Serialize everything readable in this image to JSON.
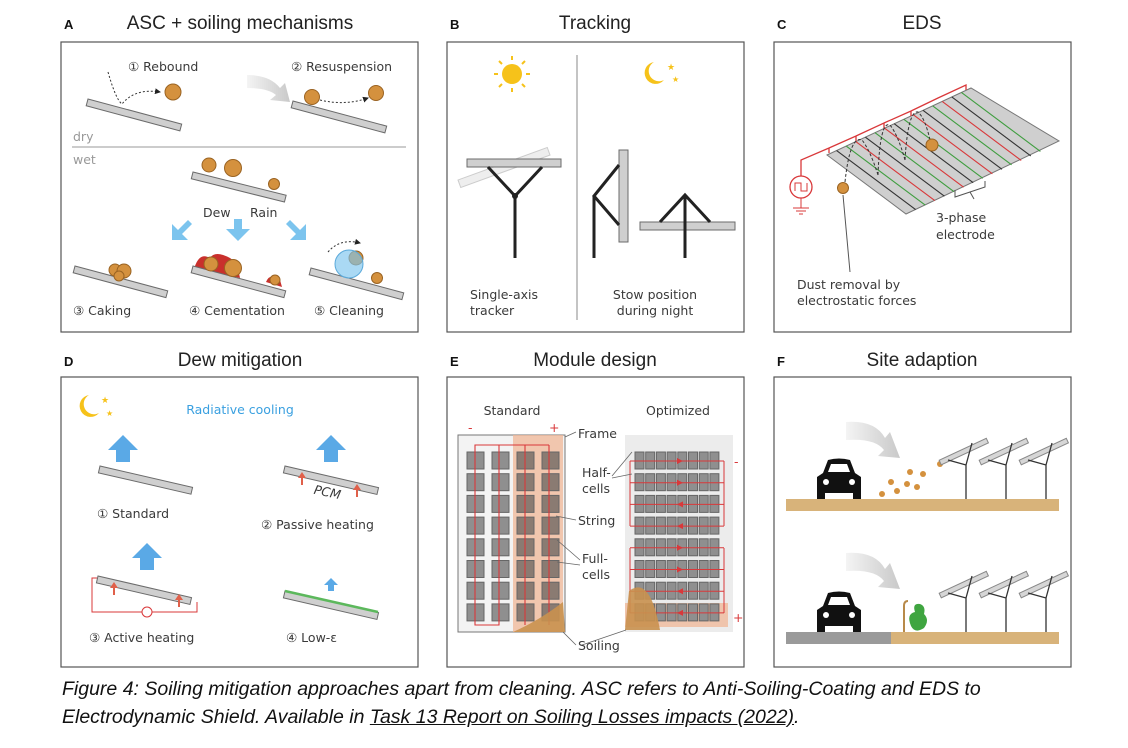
{
  "panels": {
    "A": {
      "letter": "A",
      "title": "ASC + soiling mechanisms",
      "rebound": "① Rebound",
      "resuspension": "② Resuspension",
      "dry": "dry",
      "wet": "wet",
      "dew": "Dew",
      "rain": "Rain",
      "caking": "③ Caking",
      "cementation": "④ Cementation",
      "cleaning": "⑤ Cleaning"
    },
    "B": {
      "letter": "B",
      "title": "Tracking",
      "tracker_line1": "Single-axis",
      "tracker_line2": "tracker",
      "stow_line1": "Stow position",
      "stow_line2": "during night"
    },
    "C": {
      "letter": "C",
      "title": "EDS",
      "electrode_line1": "3-phase",
      "electrode_line2": "electrode",
      "dust_line1": "Dust removal by",
      "dust_line2": "electrostatic forces"
    },
    "D": {
      "letter": "D",
      "title": "Dew mitigation",
      "radiative": "Radiative cooling",
      "standard": "① Standard",
      "passive": "② Passive heating",
      "pcm": "PCM",
      "active": "③ Active heating",
      "lowe": "④ Low-ε"
    },
    "E": {
      "letter": "E",
      "title": "Module design",
      "standard": "Standard",
      "optimized": "Optimized",
      "minus": "-",
      "plus": "+",
      "frame": "Frame",
      "half1": "Half-",
      "half2": "cells",
      "string": "String",
      "full1": "Full-",
      "full2": "cells",
      "soiling": "Soiling"
    },
    "F": {
      "letter": "F",
      "title": "Site adaption"
    }
  },
  "colors": {
    "dust": "#d4913e",
    "water": "#7cc4ee",
    "wire": "#d9383a",
    "green": "#3f9e3f",
    "ground": "#d8b37a",
    "road": "#9a9a9a"
  },
  "caption": {
    "line1": "Figure 4: Soiling mitigation approaches apart from cleaning. ASC refers to Anti-Soiling-Coating and EDS to",
    "line2_prefix": "Electrodynamic Shield. Available in ",
    "link": "Task 13 Report on Soiling Losses impacts (2022)",
    "line2_suffix": "."
  }
}
